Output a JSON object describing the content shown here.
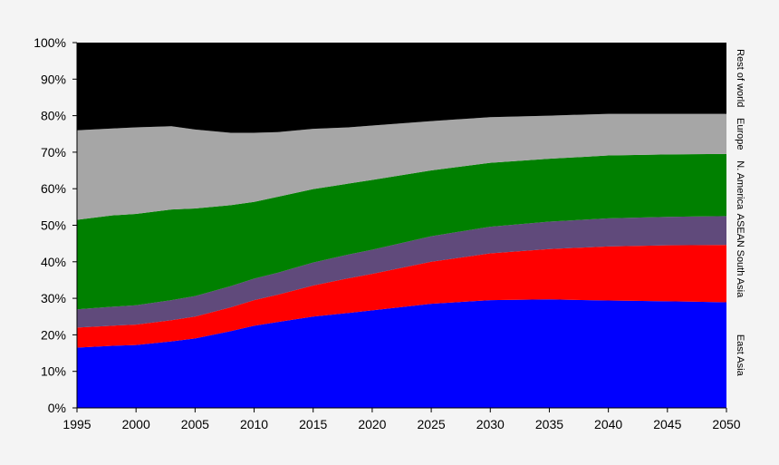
{
  "chart_data": {
    "type": "area",
    "stacked": true,
    "percent": true,
    "x": [
      1995,
      1998,
      2000,
      2003,
      2005,
      2008,
      2010,
      2012,
      2015,
      2018,
      2020,
      2025,
      2030,
      2035,
      2040,
      2045,
      2050
    ],
    "xlim": [
      1995,
      2050
    ],
    "ylim": [
      0,
      100
    ],
    "x_ticks": [
      "1995",
      "2000",
      "2005",
      "2010",
      "2015",
      "2020",
      "2025",
      "2030",
      "2035",
      "2040",
      "2045",
      "2050"
    ],
    "y_ticks": [
      "0%",
      "10%",
      "20%",
      "30%",
      "40%",
      "50%",
      "60%",
      "70%",
      "80%",
      "90%",
      "100%"
    ],
    "grid": false,
    "legend": "right side, rotated labels",
    "series": [
      {
        "name": "East Asia",
        "color": "#0000ff",
        "values": [
          16.5,
          17.0,
          17.2,
          18.2,
          19.0,
          21.0,
          22.5,
          23.5,
          25.0,
          26.0,
          26.7,
          28.5,
          29.5,
          29.7,
          29.4,
          29.2,
          28.9
        ]
      },
      {
        "name": "South Asia",
        "color": "#ff0000",
        "values": [
          5.5,
          5.5,
          5.6,
          5.8,
          6.0,
          6.5,
          7.0,
          7.5,
          8.5,
          9.5,
          10.0,
          11.5,
          12.8,
          13.8,
          14.8,
          15.3,
          15.7
        ]
      },
      {
        "name": "ASEAN",
        "color": "#604a7b",
        "values": [
          5.0,
          5.2,
          5.3,
          5.5,
          5.6,
          5.8,
          5.9,
          6.0,
          6.3,
          6.5,
          6.6,
          7.0,
          7.3,
          7.5,
          7.7,
          7.8,
          7.9
        ]
      },
      {
        "name": "N. America",
        "color": "#008000",
        "values": [
          24.5,
          25.0,
          25.0,
          24.8,
          24.0,
          22.2,
          21.0,
          20.8,
          20.1,
          19.4,
          19.1,
          18.0,
          17.5,
          17.2,
          17.2,
          17.1,
          17.0
        ]
      },
      {
        "name": "Europe",
        "color": "#a6a6a6",
        "values": [
          24.5,
          23.8,
          23.7,
          22.8,
          21.6,
          19.8,
          18.9,
          17.7,
          16.5,
          15.4,
          14.9,
          13.5,
          12.5,
          11.8,
          11.4,
          11.1,
          11.0
        ]
      },
      {
        "name": "Rest of world",
        "color": "#000000",
        "values": [
          24.0,
          23.5,
          23.2,
          22.9,
          23.8,
          24.7,
          24.7,
          24.5,
          23.6,
          23.2,
          22.7,
          21.5,
          20.4,
          20.0,
          19.5,
          19.5,
          19.5
        ]
      }
    ]
  }
}
